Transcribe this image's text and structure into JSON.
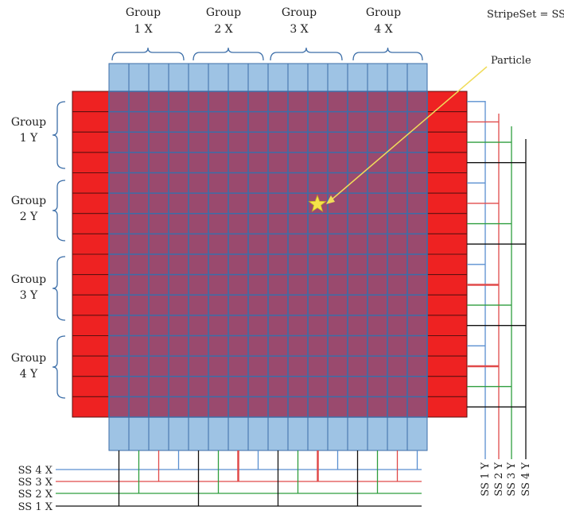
{
  "diagram": {
    "stripeset_note": "StripeSet = SS",
    "particle_label": "Particle",
    "group_word": "Group",
    "groups_x": [
      "1 X",
      "2 X",
      "3 X",
      "4 X"
    ],
    "groups_y": [
      "1 Y",
      "2 Y",
      "3 Y",
      "4 Y"
    ],
    "ss_x": [
      "SS 4 X",
      "SS 3 X",
      "SS 2 X",
      "SS 1 X"
    ],
    "ss_y": [
      "SS 1 Y",
      "SS 2 Y",
      "SS 3 Y",
      "SS 4 Y"
    ],
    "strips_x": 16,
    "strips_y": 16,
    "colors": {
      "x_strip": "#9ec3e4",
      "x_strip_border": "#3c6ea8",
      "y_strip": "#ee2222",
      "overlap": "#9a4a6e",
      "grid_line": "#3c6ea8",
      "ss1": "#111111",
      "ss2": "#2e9e3e",
      "ss3": "#e04a4a",
      "ss4": "#5a8fd0",
      "particle": "#f4e34a",
      "arrow": "#f0dc5a"
    }
  }
}
